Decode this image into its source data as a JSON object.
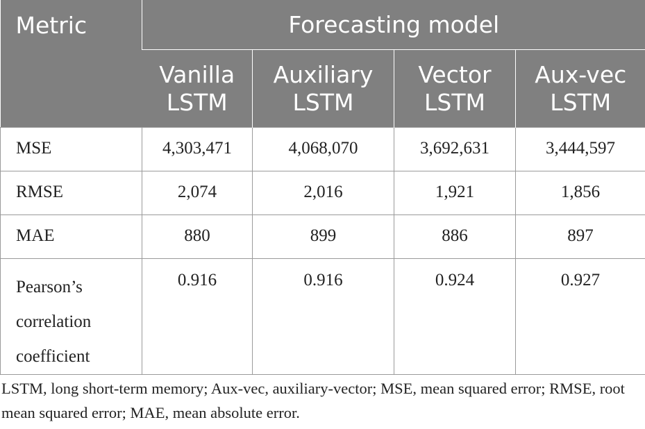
{
  "table": {
    "header": {
      "metric_label": "Metric",
      "group_label": "Forecasting model",
      "models": [
        {
          "line1": "Vanilla",
          "line2": "LSTM"
        },
        {
          "line1": "Auxiliary",
          "line2": "LSTM"
        },
        {
          "line1": "Vector",
          "line2": "LSTM"
        },
        {
          "line1": "Aux-vec",
          "line2": "LSTM"
        }
      ]
    },
    "rows": [
      {
        "metric": "MSE",
        "values": [
          "4,303,471",
          "4,068,070",
          "3,692,631",
          "3,444,597"
        ]
      },
      {
        "metric": "RMSE",
        "values": [
          "2,074",
          "2,016",
          "1,921",
          "1,856"
        ]
      },
      {
        "metric": "MAE",
        "values": [
          "880",
          "899",
          "886",
          "897"
        ]
      },
      {
        "metric_lines": [
          "Pearson’s",
          "correlation",
          "coefficient"
        ],
        "values": [
          "0.916",
          "0.916",
          "0.924",
          "0.927"
        ]
      }
    ]
  },
  "footnote": "LSTM, long short-term memory; Aux-vec, auxiliary-vector; MSE, mean squared error; RMSE, root mean squared error; MAE, mean absolute error."
}
